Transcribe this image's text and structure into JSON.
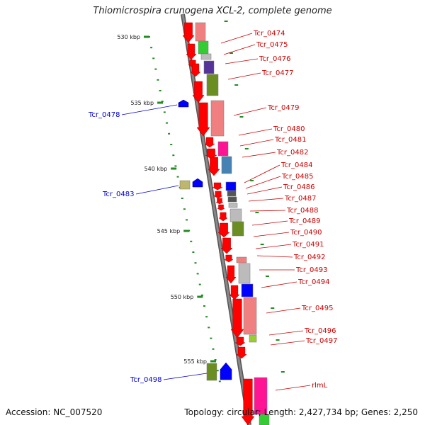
{
  "title": "Thiomicrospira crunogena XCL-2, complete genome",
  "footer": {
    "accession": "Accession: NC_007520",
    "topology": "Topology: circular; Length: 2,427,734 bp; Genes: 2,250"
  },
  "scale": {
    "unit": "kbp",
    "ticks": [
      "530 kbp",
      "535 kbp",
      "540 kbp",
      "545 kbp",
      "550 kbp",
      "555 kbp"
    ]
  },
  "gene_labels": {
    "right": [
      "Tcr_0474",
      "Tcr_0475",
      "Tcr_0476",
      "Tcr_0477",
      "Tcr_0479",
      "Tcr_0480",
      "Tcr_0481",
      "Tcr_0482",
      "Tcr_0484",
      "Tcr_0485",
      "Tcr_0486",
      "Tcr_0487",
      "Tcr_0488",
      "Tcr_0489",
      "Tcr_0490",
      "Tcr_0491",
      "Tcr_0492",
      "Tcr_0493",
      "Tcr_0494",
      "Tcr_0495",
      "Tcr_0496",
      "Tcr_0497",
      "rlmL"
    ],
    "left": [
      "Tcr_0478",
      "Tcr_0483",
      "Tcr_0498"
    ]
  },
  "colors": {
    "backbone": "#888888",
    "gene_arrow": "#ff0000",
    "label_right": "#cc0000",
    "label_left": "#0000cc",
    "tick": "#228b22",
    "block_pink": "#f08080",
    "block_green": "#33cc33",
    "block_gray": "#bbbbbb",
    "block_purple": "#553399",
    "block_olive": "#6b8e23",
    "block_magenta": "#ff1493",
    "block_steel": "#4682b4",
    "block_blue": "#0000ff",
    "block_dark": "#555555",
    "block_khaki": "#bdb76b",
    "block_yellowgreen": "#9acd32"
  }
}
